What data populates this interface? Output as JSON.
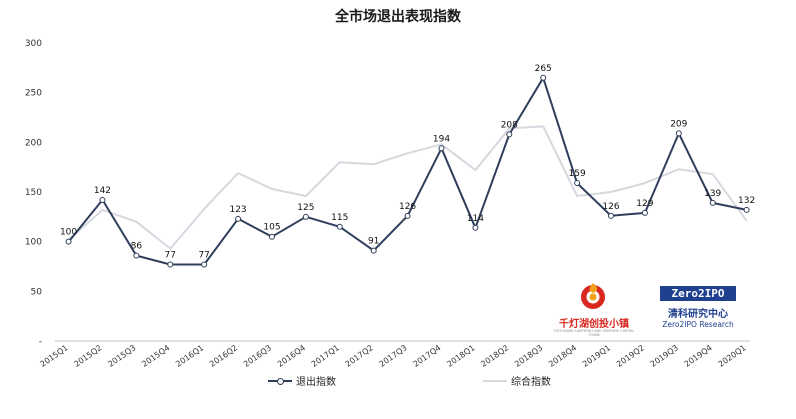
{
  "chart_data": {
    "type": "line",
    "title": "全市场退出表现指数",
    "categories": [
      "2015Q1",
      "2015Q2",
      "2015Q3",
      "2015Q4",
      "2016Q1",
      "2016Q2",
      "2016Q3",
      "2016Q4",
      "2017Q1",
      "2017Q2",
      "2017Q3",
      "2017Q4",
      "2018Q1",
      "2018Q2",
      "2018Q3",
      "2018Q4",
      "2019Q1",
      "2019Q2",
      "2019Q3",
      "2019Q4",
      "2020Q1"
    ],
    "series": [
      {
        "name": "退出指数",
        "color": "#2f3e5c",
        "labeled": true,
        "values": [
          100,
          142,
          86,
          77,
          77,
          123,
          105,
          125,
          115,
          91,
          126,
          194,
          114,
          208,
          265,
          159,
          126,
          129,
          209,
          139,
          132
        ]
      },
      {
        "name": "综合指数",
        "color": "#d5d8de",
        "labeled": false,
        "values": [
          102,
          132,
          120,
          93,
          133,
          169,
          153,
          146,
          180,
          178,
          189,
          198,
          172,
          214,
          216,
          146,
          150,
          159,
          173,
          168,
          121
        ]
      }
    ],
    "y_ticks": [
      "-",
      "50",
      "100",
      "150",
      "200",
      "250",
      "300"
    ],
    "ylim": [
      0,
      300
    ],
    "grid": false,
    "legend_position": "bottom"
  },
  "logos": {
    "qiandeng": {
      "name": "千灯湖创投小镇",
      "subtitle": "THOUSAND LANTERN LAKE VENTURE CAPITAL TOWN",
      "icon": "qiandeng-emblem-icon"
    },
    "zero2ipo": {
      "badge": "Zero2IPO",
      "name": "清科研究中心",
      "subtitle": "Zero2IPO Research"
    }
  }
}
